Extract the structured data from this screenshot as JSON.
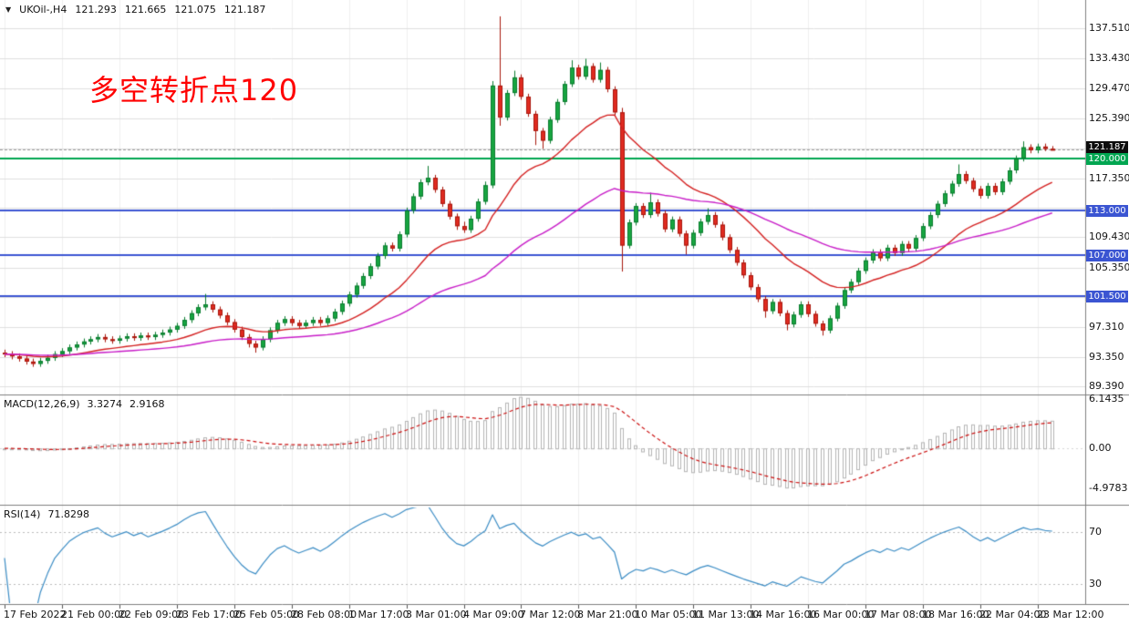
{
  "header": {
    "collapse_icon": "▼",
    "symbol": "UKOil-,H4",
    "open": "121.293",
    "high": "121.665",
    "low": "121.075",
    "close": "121.187"
  },
  "annotation": {
    "text": "多空转折点120",
    "color": "#ff0000"
  },
  "price_axis": {
    "labels": [
      {
        "price": 137.51,
        "text": "137.510"
      },
      {
        "price": 133.43,
        "text": "133.430"
      },
      {
        "price": 129.47,
        "text": "129.470"
      },
      {
        "price": 125.39,
        "text": "125.390"
      },
      {
        "price": 117.35,
        "text": "117.350"
      },
      {
        "price": 109.43,
        "text": "109.430"
      },
      {
        "price": 105.35,
        "text": "105.350"
      },
      {
        "price": 97.31,
        "text": "97.310"
      },
      {
        "price": 93.35,
        "text": "93.350"
      },
      {
        "price": 89.39,
        "text": "89.390"
      }
    ]
  },
  "levels": {
    "current_price": {
      "value": 121.187,
      "label": "121.187",
      "badge_bg": "#0d0d0d",
      "line_color": "#999999"
    },
    "support_resistance": [
      {
        "value": 120.0,
        "label": "120.000",
        "color": "#00a651"
      },
      {
        "value": 113.0,
        "label": "113.000",
        "color": "#3b55d2"
      },
      {
        "value": 107.0,
        "label": "107.000",
        "color": "#3b55d2"
      },
      {
        "value": 101.5,
        "label": "101.500",
        "color": "#3b55d2"
      }
    ]
  },
  "time_axis": {
    "bars_per_label": 8,
    "labels": [
      "17 Feb 2022",
      "21 Feb 00:00",
      "22 Feb 09:00",
      "23 Feb 17:00",
      "25 Feb 05:00",
      "28 Feb 08:00",
      "1 Mar 17:00",
      "3 Mar 01:00",
      "4 Mar 09:00",
      "7 Mar 12:00",
      "8 Mar 21:00",
      "10 Mar 05:00",
      "11 Mar 13:00",
      "14 Mar 16:00",
      "16 Mar 00:00",
      "17 Mar 08:00",
      "18 Mar 16:00",
      "22 Mar 04:00",
      "23 Mar 12:00"
    ]
  },
  "macd_pane": {
    "label": "MACD(12,26,9)",
    "main_value": "3.3274",
    "signal_value": "2.9168",
    "axis_labels": [
      {
        "value": 6.1435,
        "text": "6.1435"
      },
      {
        "value": 0,
        "text": "0.00"
      },
      {
        "value": -4.9783,
        "text": "-4.9783"
      }
    ]
  },
  "rsi_pane": {
    "label": "RSI(14)",
    "value": "71.8298",
    "axis_labels": [
      {
        "value": 70,
        "text": "70"
      },
      {
        "value": 30,
        "text": "30"
      }
    ]
  },
  "chart_data": [
    {
      "type": "candlestick",
      "title": "UKOil-,H4",
      "ylim": [
        88.4,
        141.3
      ],
      "y_gridlines": [
        137.51,
        133.43,
        129.47,
        125.39,
        121.31,
        117.35,
        113.39,
        109.43,
        105.35,
        101.39,
        97.31,
        93.35,
        89.39
      ],
      "bars_per_tick": 8,
      "x_tick_labels": [
        "17 Feb 2022",
        "21 Feb 00:00",
        "22 Feb 09:00",
        "23 Feb 17:00",
        "25 Feb 05:00",
        "28 Feb 08:00",
        "1 Mar 17:00",
        "3 Mar 01:00",
        "4 Mar 09:00",
        "7 Mar 12:00",
        "8 Mar 21:00",
        "10 Mar 05:00",
        "11 Mar 13:00",
        "14 Mar 16:00",
        "16 Mar 00:00",
        "17 Mar 08:00",
        "18 Mar 16:00",
        "22 Mar 04:00",
        "23 Mar 12:00"
      ],
      "up_color": "#17a541",
      "up_border": "#0b7c2f",
      "down_color": "#e02b20",
      "down_border": "#a8170d",
      "overlays": [
        {
          "name": "ema-red",
          "approx_period": 20,
          "color": "#d42020"
        },
        {
          "name": "ema-magenta",
          "approx_period": 55,
          "color": "#c81dc8"
        }
      ],
      "candles": [
        [
          93.9,
          94.3,
          93.3,
          93.7
        ],
        [
          93.7,
          94.1,
          93,
          93.4
        ],
        [
          93.4,
          93.8,
          92.7,
          93.1
        ],
        [
          93.1,
          93.5,
          92.3,
          92.7
        ],
        [
          92.7,
          93.1,
          92,
          92.4
        ],
        [
          92.4,
          93.2,
          92,
          92.8
        ],
        [
          92.8,
          93.6,
          92.4,
          93.2
        ],
        [
          93.2,
          94.1,
          92.8,
          93.7
        ],
        [
          93.7,
          94.5,
          93.3,
          94.1
        ],
        [
          94.1,
          95,
          93.7,
          94.6
        ],
        [
          94.6,
          95.4,
          94.2,
          95
        ],
        [
          95,
          95.8,
          94.6,
          95.4
        ],
        [
          95.4,
          96.1,
          95,
          95.7
        ],
        [
          95.7,
          96.4,
          95.3,
          96
        ],
        [
          96,
          96.4,
          95.3,
          95.7
        ],
        [
          95.7,
          96.1,
          95.1,
          95.5
        ],
        [
          95.5,
          96.2,
          95.1,
          95.8
        ],
        [
          95.8,
          96.5,
          95.4,
          96.1
        ],
        [
          96.1,
          96.5,
          95.5,
          95.9
        ],
        [
          95.9,
          96.6,
          95.5,
          96.2
        ],
        [
          96.2,
          96.6,
          95.6,
          96
        ],
        [
          96,
          96.7,
          95.6,
          96.3
        ],
        [
          96.3,
          97,
          95.9,
          96.6
        ],
        [
          96.6,
          97.4,
          96.2,
          97
        ],
        [
          97,
          97.9,
          96.6,
          97.5
        ],
        [
          97.5,
          98.7,
          97.1,
          98.3
        ],
        [
          98.3,
          99.6,
          97.9,
          99.2
        ],
        [
          99.2,
          100.4,
          98.8,
          100
        ],
        [
          100,
          101.8,
          99.6,
          100.4
        ],
        [
          100.4,
          100.8,
          99.3,
          99.7
        ],
        [
          99.7,
          100.1,
          98.5,
          98.9
        ],
        [
          98.9,
          99.3,
          97.6,
          98
        ],
        [
          98,
          98.4,
          96.6,
          97
        ],
        [
          97,
          97.4,
          95.6,
          96
        ],
        [
          96,
          96.4,
          94.6,
          95.1
        ],
        [
          95.1,
          95.5,
          93.9,
          94.6
        ],
        [
          94.6,
          96.1,
          94.2,
          95.7
        ],
        [
          95.7,
          97.3,
          95.3,
          96.9
        ],
        [
          96.9,
          98.3,
          96.5,
          97.9
        ],
        [
          97.9,
          98.8,
          97.5,
          98.4
        ],
        [
          98.4,
          98.8,
          97.5,
          97.9
        ],
        [
          97.9,
          98.3,
          97.1,
          97.5
        ],
        [
          97.5,
          98.3,
          97.1,
          97.9
        ],
        [
          97.9,
          98.7,
          97.5,
          98.3
        ],
        [
          98.3,
          98.7,
          97.5,
          97.9
        ],
        [
          97.9,
          98.9,
          97.5,
          98.5
        ],
        [
          98.5,
          99.8,
          98.1,
          99.4
        ],
        [
          99.4,
          100.9,
          99,
          100.5
        ],
        [
          100.5,
          102.1,
          100.1,
          101.7
        ],
        [
          101.7,
          103.3,
          101.3,
          102.9
        ],
        [
          102.9,
          104.6,
          102.5,
          104.2
        ],
        [
          104.2,
          105.9,
          103.8,
          105.5
        ],
        [
          105.5,
          107.3,
          105.1,
          106.9
        ],
        [
          106.9,
          108.7,
          106.5,
          108.3
        ],
        [
          108.3,
          108.7,
          107.5,
          107.9
        ],
        [
          107.9,
          110.2,
          107.5,
          109.8
        ],
        [
          109.8,
          113.4,
          109.4,
          113
        ],
        [
          113,
          115.3,
          112.6,
          114.9
        ],
        [
          114.9,
          117.2,
          114.5,
          116.8
        ],
        [
          116.8,
          119,
          116.4,
          117.4
        ],
        [
          117.4,
          117.8,
          115.4,
          115.8
        ],
        [
          115.8,
          116.2,
          113.5,
          113.9
        ],
        [
          113.9,
          114.3,
          111.8,
          112.2
        ],
        [
          112.2,
          112.6,
          110.4,
          110.9
        ],
        [
          110.9,
          111.5,
          110,
          110.4
        ],
        [
          110.4,
          112.3,
          110,
          111.9
        ],
        [
          111.9,
          114.6,
          111.5,
          114.2
        ],
        [
          114.2,
          116.9,
          113.8,
          116.4
        ],
        [
          116.4,
          130.4,
          116,
          129.8
        ],
        [
          129.8,
          139.1,
          124.4,
          125.5
        ],
        [
          125.5,
          129.2,
          125.1,
          128.8
        ],
        [
          128.8,
          131.8,
          128.4,
          130.9
        ],
        [
          130.9,
          131.3,
          127.9,
          128.3
        ],
        [
          128.3,
          128.7,
          125.6,
          126
        ],
        [
          126,
          126.4,
          121.8,
          123.7
        ],
        [
          123.7,
          124.1,
          121.3,
          122.4
        ],
        [
          122.4,
          125.6,
          122,
          125.2
        ],
        [
          125.2,
          128,
          124.8,
          127.6
        ],
        [
          127.6,
          130.4,
          127.2,
          130
        ],
        [
          130,
          133.2,
          129.6,
          132.2
        ],
        [
          132.2,
          132.6,
          130.6,
          131
        ],
        [
          131,
          133.4,
          130.6,
          132.4
        ],
        [
          132.4,
          132.8,
          130.2,
          130.6
        ],
        [
          130.6,
          132.9,
          130.2,
          131.9
        ],
        [
          131.9,
          132.3,
          128.9,
          129.3
        ],
        [
          129.3,
          129.7,
          125.8,
          126.2
        ],
        [
          126.2,
          126.8,
          104.8,
          108.3
        ],
        [
          108.3,
          111.8,
          107.9,
          111.4
        ],
        [
          111.4,
          114,
          111,
          113.6
        ],
        [
          113.6,
          114,
          112,
          112.4
        ],
        [
          112.4,
          115.4,
          112,
          114.1
        ],
        [
          114.1,
          114.5,
          112.2,
          112.6
        ],
        [
          112.6,
          113,
          110.1,
          110.5
        ],
        [
          110.5,
          112.2,
          110.1,
          111.8
        ],
        [
          111.8,
          112.2,
          109.5,
          109.9
        ],
        [
          109.9,
          110.3,
          107.1,
          108.3
        ],
        [
          108.3,
          110.4,
          107.9,
          110
        ],
        [
          110,
          111.9,
          109.6,
          111.5
        ],
        [
          111.5,
          113.3,
          111.1,
          112.4
        ],
        [
          112.4,
          112.8,
          110.7,
          111.1
        ],
        [
          111.1,
          111.5,
          109,
          109.4
        ],
        [
          109.4,
          109.8,
          107.3,
          107.7
        ],
        [
          107.7,
          108.1,
          105.6,
          106
        ],
        [
          106,
          106.4,
          103.9,
          104.3
        ],
        [
          104.3,
          104.7,
          102.3,
          102.7
        ],
        [
          102.7,
          103.1,
          100.7,
          101.1
        ],
        [
          101.1,
          101.5,
          98.6,
          99.5
        ],
        [
          99.5,
          101.1,
          99.1,
          100.7
        ],
        [
          100.7,
          101.1,
          98.8,
          99.2
        ],
        [
          99.2,
          99.6,
          96.9,
          97.7
        ],
        [
          97.7,
          99.4,
          97.3,
          99
        ],
        [
          99,
          100.8,
          98.6,
          100.4
        ],
        [
          100.4,
          100.8,
          98.7,
          99.1
        ],
        [
          99.1,
          99.5,
          97.4,
          97.8
        ],
        [
          97.8,
          98.2,
          96.2,
          96.9
        ],
        [
          96.9,
          98.9,
          96.5,
          98.5
        ],
        [
          98.5,
          100.6,
          98.1,
          100.2
        ],
        [
          100.2,
          102.7,
          99.8,
          102.3
        ],
        [
          102.3,
          103.8,
          101.9,
          103.4
        ],
        [
          103.4,
          105.3,
          103,
          104.9
        ],
        [
          104.9,
          106.7,
          104.5,
          106.3
        ],
        [
          106.3,
          107.8,
          105.9,
          107.4
        ],
        [
          107.4,
          107.8,
          106.2,
          106.6
        ],
        [
          106.6,
          108.4,
          106.2,
          108
        ],
        [
          108,
          108.4,
          106.9,
          107.3
        ],
        [
          107.3,
          108.9,
          106.9,
          108.5
        ],
        [
          108.5,
          108.9,
          107.5,
          107.9
        ],
        [
          107.9,
          109.7,
          107.5,
          109.3
        ],
        [
          109.3,
          111.3,
          108.9,
          110.9
        ],
        [
          110.9,
          112.8,
          110.5,
          112.4
        ],
        [
          112.4,
          114.3,
          112,
          113.9
        ],
        [
          113.9,
          115.7,
          113.5,
          115.3
        ],
        [
          115.3,
          117,
          114.9,
          116.6
        ],
        [
          116.6,
          119.2,
          116.2,
          117.9
        ],
        [
          117.9,
          118.3,
          116.6,
          117
        ],
        [
          117,
          117.4,
          115.5,
          115.9
        ],
        [
          115.9,
          116.3,
          114.6,
          115
        ],
        [
          115,
          116.7,
          114.6,
          116.3
        ],
        [
          116.3,
          116.7,
          115.1,
          115.5
        ],
        [
          115.5,
          117.3,
          115.1,
          116.9
        ],
        [
          116.9,
          118.8,
          116.5,
          118.4
        ],
        [
          118.4,
          120.4,
          118,
          120
        ],
        [
          120,
          122.3,
          119.6,
          121.5
        ],
        [
          121.5,
          121.9,
          120.7,
          121.1
        ],
        [
          121.1,
          122,
          120.7,
          121.6
        ],
        [
          121.6,
          122,
          121,
          121.293
        ],
        [
          121.293,
          121.665,
          121.075,
          121.187
        ]
      ]
    },
    {
      "type": "bar",
      "title": "MACD(12,26,9)",
      "params": {
        "fast": 12,
        "slow": 26,
        "signal": 9
      },
      "ylim": [
        -6.9,
        6.6
      ],
      "y_tick_values": [
        6.1435,
        0,
        -4.9783
      ],
      "current_main": 3.3274,
      "current_signal": 2.9168,
      "histogram_color": "#b5b5b5",
      "signal_color": "#cc1111"
    },
    {
      "type": "line",
      "title": "RSI(14)",
      "period": 14,
      "ylim": [
        15,
        90
      ],
      "levels": [
        70,
        30
      ],
      "current": 71.8298,
      "line_color": "#3c8dc5",
      "level_line_color": "#bbbbbb"
    }
  ]
}
